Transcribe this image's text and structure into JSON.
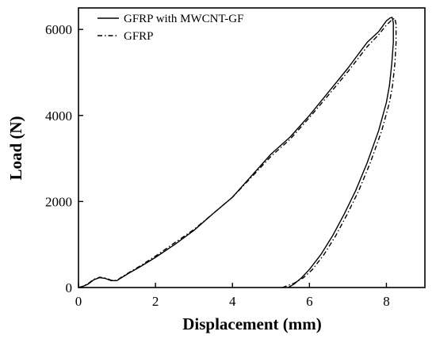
{
  "chart_data": {
    "type": "line",
    "title": "",
    "xlabel": "Displacement (mm)",
    "ylabel": "Load (N)",
    "xlim": [
      0,
      9
    ],
    "ylim": [
      0,
      6500
    ],
    "x_ticks": [
      0,
      2,
      4,
      6,
      8
    ],
    "y_ticks": [
      0,
      2000,
      4000,
      6000
    ],
    "x_tick_labels": [
      "0",
      "2",
      "4",
      "6",
      "8"
    ],
    "y_tick_labels": [
      "0",
      "2000",
      "4000",
      "6000"
    ],
    "grid": false,
    "legend_position": "top-left",
    "series": [
      {
        "name": "GFRP with MWCNT-GF",
        "line_style": "solid",
        "color": "#000000",
        "x": [
          0.0,
          0.1,
          0.25,
          0.4,
          0.55,
          0.7,
          0.85,
          1.0,
          1.1,
          1.3,
          1.6,
          2.0,
          2.5,
          3.0,
          3.5,
          4.0,
          4.5,
          5.0,
          5.5,
          6.0,
          6.5,
          7.0,
          7.5,
          7.8,
          8.0,
          8.1,
          8.15,
          8.18,
          8.18,
          8.14,
          8.08,
          8.0,
          7.8,
          7.5,
          7.2,
          6.9,
          6.6,
          6.3,
          6.0,
          5.8,
          5.6,
          5.45
        ],
        "y": [
          0,
          20,
          80,
          180,
          230,
          210,
          160,
          160,
          220,
          330,
          480,
          700,
          1000,
          1330,
          1720,
          2100,
          2600,
          3100,
          3500,
          4000,
          4550,
          5100,
          5700,
          5950,
          6200,
          6270,
          6280,
          6150,
          5700,
          5200,
          4700,
          4300,
          3650,
          2900,
          2250,
          1700,
          1200,
          770,
          420,
          230,
          80,
          0
        ]
      },
      {
        "name": "GFRP",
        "line_style": "dashdot",
        "color": "#000000",
        "x": [
          0.0,
          0.1,
          0.25,
          0.4,
          0.55,
          0.7,
          0.85,
          1.0,
          1.1,
          1.3,
          1.6,
          2.0,
          2.5,
          3.0,
          3.5,
          4.0,
          4.5,
          5.0,
          5.5,
          6.0,
          6.5,
          7.0,
          7.5,
          7.8,
          8.0,
          8.15,
          8.22,
          8.25,
          8.25,
          8.22,
          8.16,
          8.08,
          7.88,
          7.58,
          7.28,
          6.98,
          6.68,
          6.38,
          6.08,
          5.85,
          5.6,
          5.3
        ],
        "y": [
          0,
          25,
          90,
          190,
          240,
          220,
          170,
          165,
          230,
          340,
          500,
          730,
          1040,
          1350,
          1720,
          2100,
          2570,
          3050,
          3450,
          3950,
          4480,
          5020,
          5600,
          5880,
          6100,
          6230,
          6260,
          6120,
          5680,
          5200,
          4700,
          4300,
          3650,
          2900,
          2250,
          1700,
          1200,
          770,
          420,
          230,
          100,
          0
        ]
      }
    ]
  }
}
